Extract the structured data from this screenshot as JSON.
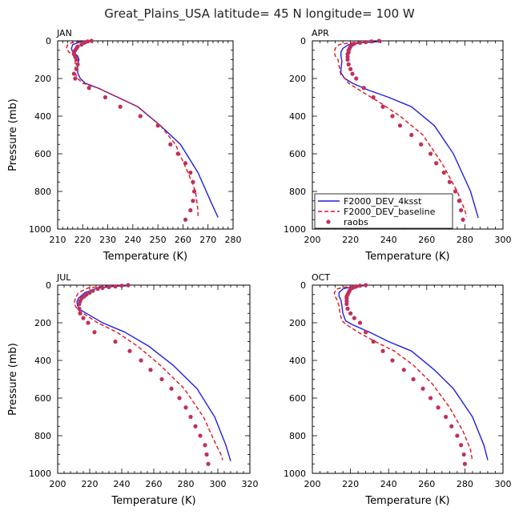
{
  "figure": {
    "title": "Great_Plains_USA  latitude= 45 N longitude= 100 W"
  },
  "legend": {
    "entries": [
      {
        "label": "F2000_DEV_4ksst",
        "color": "#1f1fe0",
        "style": "solid"
      },
      {
        "label": "F2000_DEV_baseline",
        "color": "#e0141e",
        "style": "dashed"
      },
      {
        "label": "raobs",
        "color": "#c0305a",
        "style": "dots"
      }
    ]
  },
  "chart_data": [
    {
      "type": "line",
      "title": "JAN",
      "xlabel": "Temperature (K)",
      "ylabel": "Pressure (mb)",
      "xlim": [
        210,
        280
      ],
      "xticks": [
        210,
        220,
        230,
        240,
        250,
        260,
        270,
        280
      ],
      "ylim": [
        1000,
        0
      ],
      "yticks": [
        0,
        200,
        400,
        600,
        800,
        1000
      ],
      "series": [
        {
          "name": "F2000_DEV_4ksst",
          "x": [
            220,
            218,
            216,
            215.5,
            216,
            218,
            218.5,
            218,
            218,
            219,
            221,
            226,
            234,
            242,
            251,
            259,
            266,
            271,
            274
          ],
          "y": [
            3,
            10,
            20,
            40,
            60,
            80,
            100,
            130,
            170,
            200,
            225,
            250,
            300,
            350,
            450,
            550,
            700,
            850,
            938
          ]
        },
        {
          "name": "F2000_DEV_baseline",
          "x": [
            219,
            215.5,
            214,
            213.5,
            214.5,
            216.5,
            217,
            217,
            217,
            218,
            220,
            226,
            234,
            242,
            251,
            257,
            262,
            265,
            266,
            266
          ],
          "y": [
            3,
            10,
            20,
            40,
            60,
            80,
            100,
            130,
            170,
            200,
            225,
            250,
            300,
            350,
            450,
            550,
            700,
            800,
            900,
            935
          ]
        },
        {
          "name": "raobs",
          "x": [
            223.5,
            222,
            221,
            220.5,
            219.5,
            218,
            217.5,
            217,
            216.5,
            216.5,
            217,
            217.5,
            218,
            217.5,
            216.5,
            217,
            222.5,
            229,
            235,
            243,
            250,
            255,
            258,
            261,
            263,
            264,
            264.5,
            264,
            263,
            261
          ],
          "y": [
            0,
            3,
            7,
            10,
            20,
            30,
            40,
            50,
            60,
            70,
            85,
            100,
            125,
            150,
            175,
            200,
            250,
            300,
            350,
            400,
            450,
            550,
            600,
            650,
            700,
            750,
            800,
            850,
            900,
            950
          ]
        }
      ]
    },
    {
      "type": "line",
      "title": "APR",
      "xlabel": "Temperature (K)",
      "ylabel": "",
      "xlim": [
        200,
        300
      ],
      "xticks": [
        200,
        220,
        240,
        260,
        280,
        300
      ],
      "ylim": [
        1000,
        0
      ],
      "yticks": [
        0,
        200,
        400,
        600,
        800,
        1000
      ],
      "series": [
        {
          "name": "F2000_DEV_4ksst",
          "x": [
            236,
            226,
            219,
            216,
            215,
            215,
            215.5,
            215,
            215,
            217,
            221,
            229,
            240,
            252,
            264,
            274,
            283,
            287
          ],
          "y": [
            3,
            10,
            20,
            40,
            60,
            80,
            110,
            150,
            170,
            200,
            225,
            260,
            300,
            350,
            450,
            600,
            800,
            940
          ]
        },
        {
          "name": "F2000_DEV_baseline",
          "x": [
            232,
            220,
            214,
            212,
            211.5,
            212,
            213.5,
            214,
            214.5,
            215,
            217,
            219,
            226,
            235,
            246,
            258,
            268,
            276,
            280,
            281
          ],
          "y": [
            3,
            10,
            20,
            40,
            60,
            80,
            100,
            130,
            160,
            180,
            200,
            225,
            270,
            325,
            400,
            500,
            650,
            800,
            900,
            935
          ]
        },
        {
          "name": "raobs",
          "x": [
            235,
            231,
            228,
            225,
            222,
            221,
            220,
            219.5,
            219,
            219,
            218.5,
            218.5,
            218.5,
            219,
            220,
            221,
            223,
            227,
            232,
            237,
            242,
            246,
            252,
            257,
            262,
            265,
            269,
            272,
            275,
            277,
            278,
            279
          ],
          "y": [
            0,
            3,
            7,
            10,
            15,
            20,
            30,
            40,
            50,
            60,
            70,
            85,
            100,
            125,
            150,
            175,
            200,
            250,
            300,
            350,
            400,
            450,
            500,
            550,
            600,
            650,
            700,
            750,
            800,
            850,
            900,
            950
          ]
        }
      ]
    },
    {
      "type": "line",
      "title": "JUL",
      "xlabel": "Temperature (K)",
      "ylabel": "Pressure (mb)",
      "xlim": [
        200,
        320
      ],
      "xticks": [
        200,
        220,
        240,
        260,
        280,
        300,
        320
      ],
      "ylim": [
        1000,
        0
      ],
      "yticks": [
        0,
        200,
        400,
        600,
        800,
        1000
      ],
      "series": [
        {
          "name": "F2000_DEV_4ksst",
          "x": [
            245,
            236,
            225,
            217,
            213,
            212,
            212.5,
            214,
            218,
            228,
            242,
            257,
            272,
            287,
            298,
            305,
            308
          ],
          "y": [
            3,
            6,
            15,
            40,
            70,
            90,
            110,
            130,
            150,
            200,
            250,
            325,
            425,
            550,
            700,
            850,
            935
          ]
        },
        {
          "name": "F2000_DEV_baseline",
          "x": [
            240,
            228,
            219,
            213,
            211,
            210.5,
            211,
            212.5,
            216,
            225,
            237,
            250,
            264,
            279,
            291,
            299,
            302,
            303
          ],
          "y": [
            3,
            6,
            15,
            40,
            70,
            90,
            110,
            130,
            150,
            200,
            250,
            325,
            425,
            550,
            700,
            850,
            900,
            930
          ]
        },
        {
          "name": "raobs",
          "x": [
            244,
            240,
            236,
            232,
            228,
            225,
            222,
            220,
            218,
            216.5,
            215,
            214,
            213.5,
            213.5,
            214,
            216,
            219,
            223,
            236,
            245,
            252,
            258,
            265,
            271,
            276,
            280,
            283,
            286,
            289,
            292,
            293,
            294
          ],
          "y": [
            0,
            3,
            7,
            10,
            15,
            20,
            30,
            40,
            50,
            60,
            70,
            85,
            100,
            125,
            150,
            175,
            200,
            250,
            300,
            350,
            400,
            450,
            500,
            550,
            600,
            650,
            700,
            750,
            800,
            850,
            900,
            950
          ]
        }
      ]
    },
    {
      "type": "line",
      "title": "OCT",
      "xlabel": "Temperature (K)",
      "ylabel": "",
      "xlim": [
        200,
        300
      ],
      "xticks": [
        200,
        220,
        240,
        260,
        280,
        300
      ],
      "ylim": [
        1000,
        0
      ],
      "yticks": [
        0,
        200,
        400,
        600,
        800,
        1000
      ],
      "series": [
        {
          "name": "F2000_DEV_4ksst",
          "x": [
            227,
            220,
            216,
            214,
            214,
            215,
            215.5,
            216,
            217.5,
            221,
            230,
            240,
            252,
            264,
            274,
            284,
            290,
            292
          ],
          "y": [
            3,
            10,
            20,
            40,
            60,
            80,
            110,
            150,
            190,
            210,
            250,
            300,
            350,
            450,
            550,
            700,
            850,
            930
          ]
        },
        {
          "name": "F2000_DEV_baseline",
          "x": [
            225,
            217,
            213,
            211.5,
            212,
            213,
            214,
            214.5,
            215.5,
            218,
            224,
            233,
            243,
            253,
            263,
            272,
            279,
            283,
            284
          ],
          "y": [
            3,
            10,
            20,
            40,
            60,
            80,
            110,
            150,
            190,
            210,
            250,
            300,
            350,
            425,
            525,
            650,
            775,
            875,
            935
          ]
        },
        {
          "name": "raobs",
          "x": [
            228,
            225,
            223,
            222,
            221,
            220,
            219.5,
            219,
            218.5,
            218,
            218,
            218,
            218,
            218.5,
            220,
            222,
            225,
            228,
            232,
            237,
            242,
            248,
            253,
            258,
            262,
            266,
            270,
            273,
            276,
            278,
            279.5,
            280
          ],
          "y": [
            0,
            3,
            7,
            10,
            15,
            20,
            30,
            40,
            50,
            60,
            70,
            85,
            100,
            125,
            150,
            175,
            200,
            250,
            300,
            350,
            400,
            450,
            500,
            550,
            600,
            650,
            700,
            750,
            800,
            850,
            900,
            950
          ]
        }
      ]
    }
  ]
}
